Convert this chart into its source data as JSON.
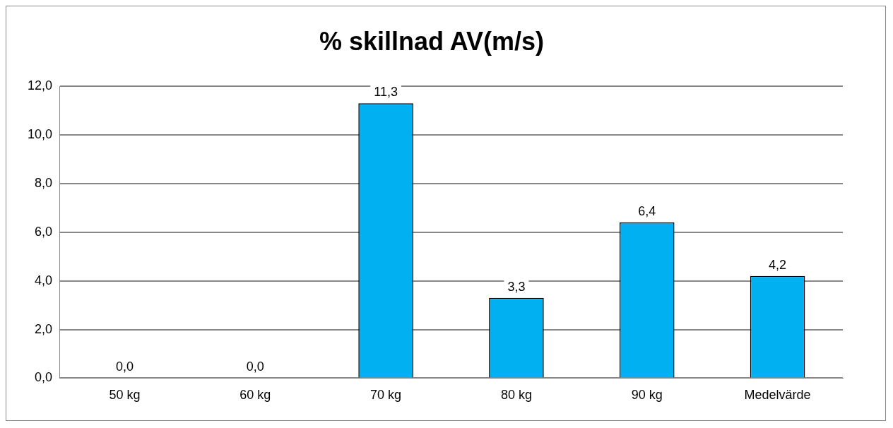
{
  "chart_data": {
    "type": "bar",
    "title": "% skillnad AV(m/s)",
    "categories": [
      "50 kg",
      "60 kg",
      "70 kg",
      "80 kg",
      "90 kg",
      "Medelvärde"
    ],
    "values": [
      0.0,
      0.0,
      11.3,
      3.3,
      6.4,
      4.2
    ],
    "value_labels": [
      "0,0",
      "0,0",
      "11,3",
      "3,3",
      "6,4",
      "4,2"
    ],
    "color": "#00b0f0",
    "ylim": [
      0,
      12
    ],
    "yticks": [
      {
        "value": 0,
        "label": "0,0"
      },
      {
        "value": 2,
        "label": "2,0"
      },
      {
        "value": 4,
        "label": "4,0"
      },
      {
        "value": 6,
        "label": "6,0"
      },
      {
        "value": 8,
        "label": "8,0"
      },
      {
        "value": 10,
        "label": "10,0"
      },
      {
        "value": 12,
        "label": "12,0"
      }
    ],
    "grid": "y",
    "legend": false
  }
}
